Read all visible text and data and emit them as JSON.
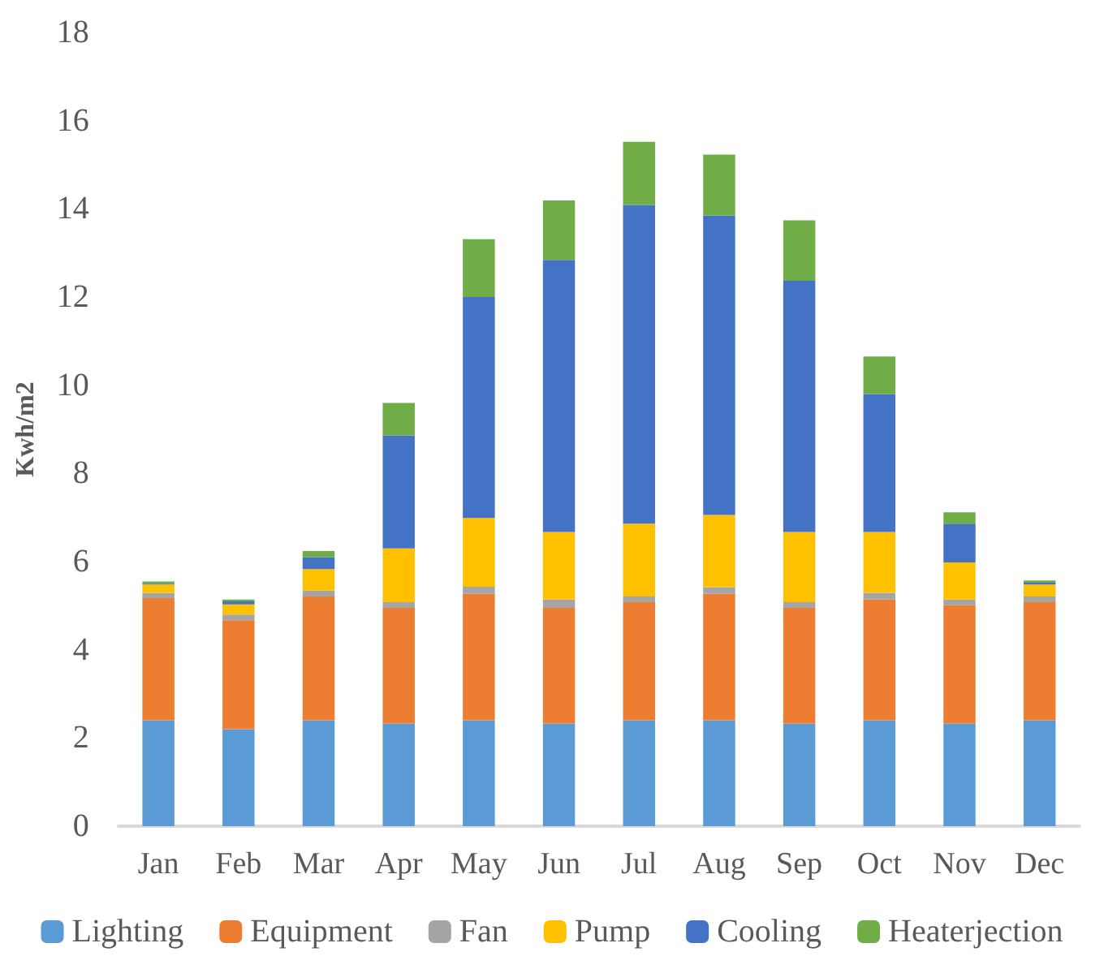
{
  "chart_data": {
    "type": "bar",
    "stacked": true,
    "ylabel": "Kwh/m2",
    "categories": [
      "Jan",
      "Feb",
      "Mar",
      "Apr",
      "May",
      "Jun",
      "Jul",
      "Aug",
      "Sep",
      "Oct",
      "Nov",
      "Dec"
    ],
    "series": [
      {
        "name": "Lighting",
        "color": "#5b9bd5",
        "values": [
          2.4,
          2.2,
          2.4,
          2.33,
          2.4,
          2.33,
          2.4,
          2.4,
          2.33,
          2.4,
          2.33,
          2.4
        ]
      },
      {
        "name": "Equipment",
        "color": "#ed7d31",
        "values": [
          2.77,
          2.47,
          2.81,
          2.62,
          2.87,
          2.62,
          2.68,
          2.87,
          2.62,
          2.74,
          2.68,
          2.68
        ]
      },
      {
        "name": "Fan",
        "color": "#a5a5a5",
        "values": [
          0.12,
          0.13,
          0.13,
          0.13,
          0.16,
          0.19,
          0.13,
          0.15,
          0.13,
          0.15,
          0.13,
          0.13
        ]
      },
      {
        "name": "Pump",
        "color": "#ffc000",
        "values": [
          0.19,
          0.23,
          0.49,
          1.22,
          1.56,
          1.53,
          1.65,
          1.64,
          1.59,
          1.38,
          0.84,
          0.27
        ]
      },
      {
        "name": "Cooling",
        "color": "#4472c4",
        "values": [
          0.02,
          0.07,
          0.27,
          2.56,
          5.01,
          6.17,
          7.23,
          6.79,
          5.7,
          3.13,
          0.88,
          0.04
        ]
      },
      {
        "name": "Heaterjection",
        "color": "#70ad47",
        "values": [
          0.05,
          0.04,
          0.14,
          0.74,
          1.31,
          1.35,
          1.43,
          1.38,
          1.37,
          0.85,
          0.26,
          0.05
        ]
      }
    ],
    "ylim": [
      0,
      18
    ],
    "yticks": [
      0,
      2,
      4,
      6,
      8,
      10,
      12,
      14,
      16,
      18
    ],
    "grid": false,
    "legend": "bottom"
  }
}
